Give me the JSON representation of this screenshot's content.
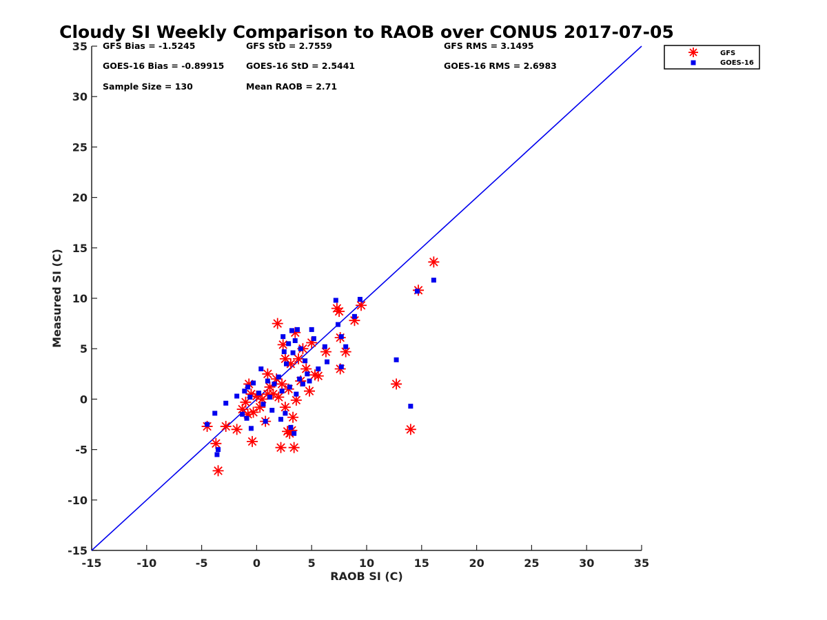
{
  "chart_data": {
    "type": "scatter",
    "title": "Cloudy SI Weekly Comparison to RAOB over CONUS 2017-07-05",
    "xlabel": "RAOB SI (C)",
    "ylabel": "Measured SI (C)",
    "xlim": [
      -15,
      35
    ],
    "ylim": [
      -15,
      35
    ],
    "xticks": [
      -15,
      -10,
      -5,
      0,
      5,
      10,
      15,
      20,
      25,
      30,
      35
    ],
    "yticks": [
      -15,
      -10,
      -5,
      0,
      5,
      10,
      15,
      20,
      25,
      30,
      35
    ],
    "grid": false,
    "legend_position": "top-right",
    "reference_line": {
      "x": [
        -15,
        35
      ],
      "y": [
        -15,
        35
      ],
      "color": "#0000ee"
    },
    "stats": [
      [
        "GFS Bias = -1.5245",
        "GFS StD = 2.7559",
        "GFS RMS = 3.1495"
      ],
      [
        "GOES-16 Bias = -0.89915",
        "GOES-16 StD = 2.5441",
        "GOES-16 RMS = 2.6983"
      ],
      [
        "Sample Size = 130",
        "Mean RAOB = 2.71",
        ""
      ]
    ],
    "series": [
      {
        "name": "GFS",
        "marker": "asterisk",
        "color": "#ff0000",
        "points": [
          [
            -4.5,
            -2.7
          ],
          [
            -3.7,
            -4.4
          ],
          [
            -3.5,
            -7.1
          ],
          [
            -2.8,
            -2.7
          ],
          [
            -1.8,
            -3.0
          ],
          [
            -1.3,
            -1.0
          ],
          [
            -1.0,
            -0.3
          ],
          [
            -0.8,
            -1.5
          ],
          [
            -0.7,
            1.5
          ],
          [
            -0.5,
            0.5
          ],
          [
            -0.4,
            -4.2
          ],
          [
            -0.3,
            -1.3
          ],
          [
            0.0,
            0.3
          ],
          [
            0.3,
            -0.8
          ],
          [
            0.5,
            0.0
          ],
          [
            0.8,
            -2.2
          ],
          [
            1.0,
            0.5
          ],
          [
            1.0,
            2.5
          ],
          [
            1.2,
            1.2
          ],
          [
            1.5,
            0.5
          ],
          [
            1.8,
            2.0
          ],
          [
            1.9,
            7.5
          ],
          [
            2.0,
            0.2
          ],
          [
            2.2,
            -4.8
          ],
          [
            2.3,
            1.5
          ],
          [
            2.4,
            5.4
          ],
          [
            2.6,
            -0.8
          ],
          [
            2.6,
            4.0
          ],
          [
            2.8,
            -3.2
          ],
          [
            2.9,
            1.0
          ],
          [
            3.0,
            -3.4
          ],
          [
            3.1,
            3.5
          ],
          [
            3.2,
            -3.1
          ],
          [
            3.3,
            -1.8
          ],
          [
            3.4,
            -4.8
          ],
          [
            3.5,
            6.6
          ],
          [
            3.6,
            -0.1
          ],
          [
            3.8,
            4.0
          ],
          [
            4.0,
            1.8
          ],
          [
            4.2,
            5.0
          ],
          [
            4.5,
            3.0
          ],
          [
            4.8,
            0.8
          ],
          [
            5.0,
            5.6
          ],
          [
            5.3,
            2.4
          ],
          [
            5.6,
            2.3
          ],
          [
            6.3,
            4.7
          ],
          [
            7.3,
            9.0
          ],
          [
            7.5,
            8.7
          ],
          [
            7.6,
            6.1
          ],
          [
            7.6,
            3.0
          ],
          [
            8.1,
            4.7
          ],
          [
            8.9,
            7.8
          ],
          [
            9.5,
            9.3
          ],
          [
            12.7,
            1.5
          ],
          [
            14.0,
            -3.0
          ],
          [
            14.7,
            10.8
          ],
          [
            16.1,
            13.6
          ]
        ]
      },
      {
        "name": "GOES-16",
        "marker": "square",
        "color": "#0000ee",
        "points": [
          [
            -4.5,
            -2.5
          ],
          [
            -3.8,
            -1.4
          ],
          [
            -3.6,
            -5.5
          ],
          [
            -3.5,
            -5.0
          ],
          [
            -2.8,
            -0.4
          ],
          [
            -1.8,
            0.3
          ],
          [
            -1.3,
            -1.5
          ],
          [
            -1.1,
            0.8
          ],
          [
            -0.9,
            -1.9
          ],
          [
            -0.8,
            1.2
          ],
          [
            -0.6,
            0.2
          ],
          [
            -0.5,
            -2.9
          ],
          [
            -0.3,
            1.6
          ],
          [
            0.2,
            0.6
          ],
          [
            0.4,
            3.0
          ],
          [
            0.6,
            -0.5
          ],
          [
            0.8,
            -2.2
          ],
          [
            1.0,
            1.8
          ],
          [
            1.2,
            0.2
          ],
          [
            1.4,
            -1.1
          ],
          [
            1.6,
            1.5
          ],
          [
            2.0,
            2.2
          ],
          [
            2.2,
            -2.0
          ],
          [
            2.3,
            0.8
          ],
          [
            2.4,
            6.2
          ],
          [
            2.5,
            4.7
          ],
          [
            2.6,
            -1.4
          ],
          [
            2.7,
            3.5
          ],
          [
            2.9,
            5.5
          ],
          [
            3.0,
            1.2
          ],
          [
            3.1,
            -2.8
          ],
          [
            3.2,
            6.8
          ],
          [
            3.3,
            4.6
          ],
          [
            3.4,
            -3.4
          ],
          [
            3.5,
            5.8
          ],
          [
            3.6,
            0.5
          ],
          [
            3.7,
            6.9
          ],
          [
            3.9,
            2.0
          ],
          [
            4.0,
            5.0
          ],
          [
            4.2,
            1.5
          ],
          [
            4.4,
            3.8
          ],
          [
            4.6,
            2.5
          ],
          [
            4.8,
            1.8
          ],
          [
            5.0,
            6.9
          ],
          [
            5.2,
            6.0
          ],
          [
            5.6,
            3.0
          ],
          [
            6.2,
            5.2
          ],
          [
            6.4,
            3.7
          ],
          [
            7.2,
            9.8
          ],
          [
            7.4,
            7.4
          ],
          [
            7.7,
            6.2
          ],
          [
            7.7,
            3.2
          ],
          [
            8.1,
            5.2
          ],
          [
            8.9,
            8.2
          ],
          [
            9.4,
            9.9
          ],
          [
            12.7,
            3.9
          ],
          [
            14.0,
            -0.7
          ],
          [
            14.6,
            10.7
          ],
          [
            16.1,
            11.8
          ]
        ]
      }
    ]
  }
}
